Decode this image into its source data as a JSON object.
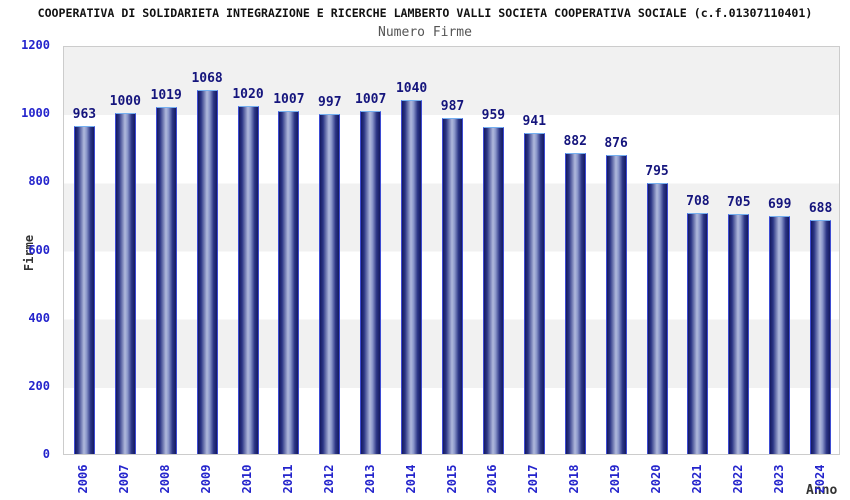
{
  "header": {
    "title": "COOPERATIVA DI SOLIDARIETA INTEGRAZIONE E RICERCHE LAMBERTO VALLI SOCIETA COOPERATIVA SOCIALE (c.f.01307110401)",
    "subtitle": "Numero Firme"
  },
  "chart_data": {
    "type": "bar",
    "title": "Numero Firme",
    "xlabel": "Anno",
    "ylabel": "Firme",
    "categories": [
      "2006",
      "2007",
      "2008",
      "2009",
      "2010",
      "2011",
      "2012",
      "2013",
      "2014",
      "2015",
      "2016",
      "2017",
      "2018",
      "2019",
      "2020",
      "2021",
      "2022",
      "2023",
      "2024"
    ],
    "values": [
      963,
      1000,
      1019,
      1068,
      1020,
      1007,
      997,
      1007,
      1040,
      987,
      959,
      941,
      882,
      876,
      795,
      708,
      705,
      699,
      688
    ],
    "ylim": [
      0,
      1200
    ],
    "yticks": [
      0,
      200,
      400,
      600,
      800,
      1000,
      1200
    ],
    "legend": "none",
    "grid": "alternating horizontal bands every 200 units",
    "colors": {
      "tick_color": "#2424cc",
      "value_color": "#15157d",
      "band_gray": "#f1f1f1",
      "plot_border": "#cccccc",
      "bar_border": "#3d4bd3",
      "bar_border_top": "#74aff0",
      "bar_dark": "#141a60",
      "bar_mid": "#2b3585",
      "bar_mid2": "#8e9acd",
      "bar_light": "#b0b9dc"
    }
  }
}
